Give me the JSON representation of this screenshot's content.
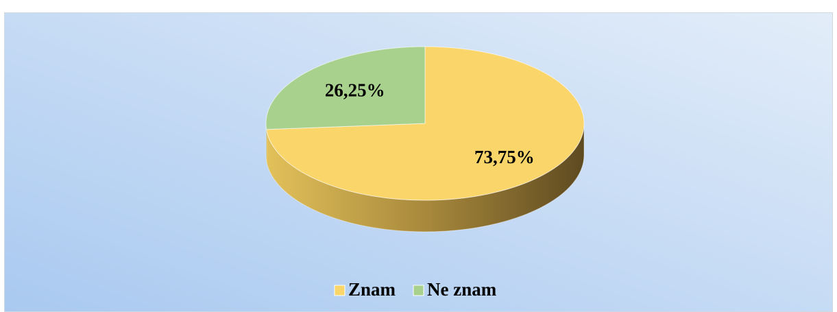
{
  "chart_data": {
    "type": "pie",
    "categories": [
      "Znam",
      "Ne znam"
    ],
    "values": [
      73.75,
      26.25
    ],
    "value_labels": [
      "73,75%",
      "26,25%"
    ],
    "colors": [
      "#fad56a",
      "#a9d18e"
    ],
    "legend": "bottom"
  }
}
